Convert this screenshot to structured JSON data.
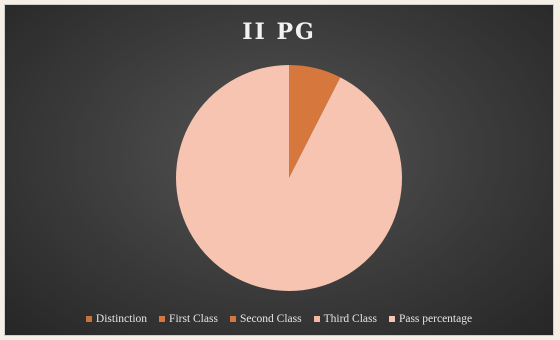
{
  "chart_data": {
    "type": "pie",
    "title": "II PG",
    "categories": [
      "Distinction",
      "First Class",
      "Second Class",
      "Third Class",
      "Pass percentage"
    ],
    "values": [
      0,
      7.5,
      0,
      0,
      92.5
    ],
    "colors": [
      "#c8733a",
      "#d6773d",
      "#d6773d",
      "#f4b8a1",
      "#f6c4b0"
    ],
    "legend_position": "bottom"
  }
}
